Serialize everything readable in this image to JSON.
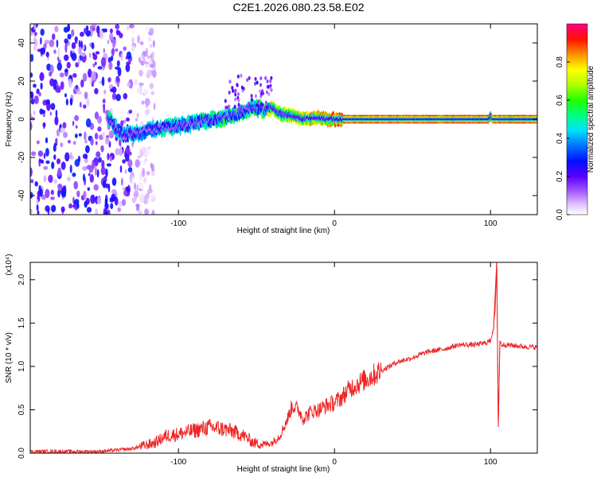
{
  "figure": {
    "title": "C2E1.2026.080.23.58.E02"
  },
  "chart_data": [
    {
      "type": "heatmap",
      "xlabel": "Height of straight line (km)",
      "ylabel": "Frequency (Hz)",
      "xlim": [
        -195,
        130
      ],
      "ylim": [
        -50,
        50
      ],
      "xticks": [
        -100,
        0,
        100
      ],
      "xtick_labels": [
        "-100",
        "0",
        "100"
      ],
      "yticks": [
        -40,
        -20,
        0,
        20,
        40
      ],
      "ytick_labels": [
        "-40",
        "-20",
        "0",
        "20",
        "40"
      ],
      "grid": false,
      "colorbar": {
        "label": "Normalized spectral amplitude",
        "range": [
          0,
          1
        ],
        "ticks": [
          0.0,
          0.2,
          0.4,
          0.6,
          0.8
        ],
        "tick_labels": [
          "0.0",
          "0.2",
          "0.4",
          "0.6",
          "0.8"
        ]
      },
      "noise_region": {
        "x": [
          -195,
          -130
        ],
        "frequency_spread": [
          -50,
          50
        ],
        "amplitude": 0.1
      },
      "dominant_frequency_track": {
        "x": [
          -145,
          -135,
          -125,
          -115,
          -105,
          -95,
          -85,
          -75,
          -65,
          -58,
          -52,
          -45,
          -40,
          -35,
          -28,
          -20,
          -12,
          -5,
          0,
          10,
          30,
          60,
          99,
          100,
          101,
          130
        ],
        "frequency": [
          0,
          -9,
          -7,
          -5,
          -4,
          -3,
          -1,
          0,
          2,
          4,
          6,
          5,
          6,
          3,
          2,
          0,
          1,
          0,
          0,
          0,
          0,
          0,
          0,
          2,
          0,
          0
        ],
        "amplitude": [
          0.55,
          0.45,
          0.5,
          0.5,
          0.55,
          0.5,
          0.55,
          0.6,
          0.6,
          0.55,
          0.6,
          0.65,
          0.85,
          0.7,
          0.8,
          0.85,
          0.9,
          0.85,
          0.95,
          1.0,
          1.0,
          1.0,
          1.0,
          0.6,
          1.0,
          1.0
        ]
      }
    },
    {
      "type": "line",
      "xlabel": "Height of straight line (km)",
      "ylabel": "SNR (10 * v/v)",
      "y_multiplier": "(x10⁴)",
      "xlim": [
        -195,
        130
      ],
      "ylim": [
        0,
        2.2
      ],
      "xticks": [
        -100,
        0,
        100
      ],
      "xtick_labels": [
        "-100",
        "0",
        "100"
      ],
      "yticks": [
        0,
        0.5,
        1.0,
        1.5,
        2.0
      ],
      "ytick_labels": [
        "0.0",
        "0.5",
        "1.0",
        "1.5",
        "2.0"
      ],
      "grid": false,
      "color": "#ee2222",
      "series": [
        {
          "x": [
            -195,
            -150,
            -130,
            -115,
            -108,
            -100,
            -90,
            -80,
            -72,
            -65,
            -58,
            -52,
            -45,
            -40,
            -35,
            -30,
            -27,
            -23,
            -20,
            -15,
            -10,
            -5,
            0,
            5,
            10,
            20,
            30,
            40,
            50,
            60,
            70,
            80,
            90,
            97,
            100,
            102,
            103,
            104,
            105,
            106,
            107,
            110,
            120,
            130
          ],
          "y": [
            0.02,
            0.02,
            0.05,
            0.12,
            0.2,
            0.22,
            0.26,
            0.3,
            0.28,
            0.25,
            0.2,
            0.12,
            0.1,
            0.12,
            0.2,
            0.4,
            0.55,
            0.5,
            0.4,
            0.48,
            0.5,
            0.55,
            0.58,
            0.65,
            0.75,
            0.85,
            0.95,
            1.05,
            1.1,
            1.17,
            1.2,
            1.25,
            1.25,
            1.27,
            1.3,
            1.45,
            1.65,
            2.2,
            0.3,
            1.3,
            1.25,
            1.25,
            1.23,
            1.22
          ]
        }
      ]
    }
  ]
}
